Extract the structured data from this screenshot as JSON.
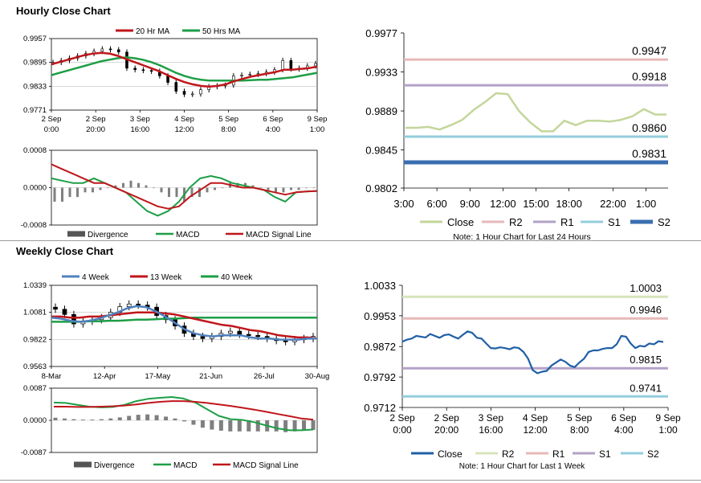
{
  "hourly": {
    "title": "Hourly Close Chart",
    "price": {
      "legend": [
        "20 Hr MA",
        "50 Hrs MA"
      ],
      "yticks": [
        "0.9957",
        "0.9895",
        "0.9833",
        "0.9771"
      ],
      "xticks": [
        [
          "2 Sep",
          "0:00"
        ],
        [
          "2 Sep",
          "20:00"
        ],
        [
          "3 Sep",
          "16:00"
        ],
        [
          "4 Sep",
          "12:00"
        ],
        [
          "5 Sep",
          "8:00"
        ],
        [
          "6 Sep",
          "4:00"
        ],
        [
          "9 Sep",
          "1:00"
        ]
      ]
    },
    "macd": {
      "yticks": [
        "0.0008",
        "0.0000",
        "-0.0008"
      ],
      "legend": [
        "Divergence",
        "MACD",
        "MACD Signal Line"
      ]
    }
  },
  "hourly_right": {
    "yticks": [
      "0.9977",
      "0.9933",
      "0.9889",
      "0.9845",
      "0.9802"
    ],
    "xticks": [
      "3:00",
      "6:00",
      "9:00",
      "12:00",
      "15:00",
      "18:00",
      "22:00",
      "1:00"
    ],
    "level_labels": [
      "0.9947",
      "0.9918",
      "0.9860",
      "0.9831"
    ],
    "legend": [
      "Close",
      "R2",
      "R1",
      "S1",
      "S2"
    ],
    "note": "Note: 1 Hour Chart for Last 24 Hours"
  },
  "weekly": {
    "title": "Weekly Close Chart",
    "price": {
      "legend": [
        "4 Week",
        "13 Week",
        "40 Week"
      ],
      "yticks": [
        "1.0339",
        "1.0081",
        "0.9822",
        "0.9563"
      ],
      "xticks": [
        "8-Mar",
        "12-Apr",
        "17-May",
        "21-Jun",
        "26-Jul",
        "30-Aug"
      ]
    },
    "macd": {
      "yticks": [
        "0.0087",
        "0.0000",
        "-0.0087"
      ],
      "legend": [
        "Divergence",
        "MACD",
        "MACD Signal Line"
      ]
    }
  },
  "weekly_right": {
    "yticks": [
      "1.0033",
      "0.9953",
      "0.9872",
      "0.9792",
      "0.9712"
    ],
    "xticks": [
      [
        "2 Sep",
        "0:00"
      ],
      [
        "2 Sep",
        "20:00"
      ],
      [
        "3 Sep",
        "16:00"
      ],
      [
        "4 Sep",
        "12:00"
      ],
      [
        "5 Sep",
        "8:00"
      ],
      [
        "6 Sep",
        "4:00"
      ],
      [
        "9 Sep",
        "1:00"
      ]
    ],
    "level_labels": [
      "1.0003",
      "0.9946",
      "0.9815",
      "0.9741"
    ],
    "legend": [
      "Close",
      "R2",
      "R1",
      "S1",
      "S2"
    ],
    "note": "Note: 1 Hour Chart for Last 1 Week"
  },
  "colors": {
    "ma_red": "#c0161b",
    "ma_green": "#1e9e46",
    "ma_blue": "#4f81bd",
    "candle": "#000000",
    "divergence": "#7f7f7f",
    "close_light": "#c3d69b",
    "close_blue": "#1f5fa6",
    "r2": "#e6b9b8",
    "r1": "#b3a2c7",
    "s1": "#93cddd",
    "s2": "#3a6eb0",
    "r2_weekly": "#d7e4bc",
    "r1_weekly": "#e6b9b8",
    "s1_weekly": "#b3a2c7",
    "s2_weekly": "#93cddd",
    "grid": "#bfbfbf"
  },
  "chart_data": [
    {
      "id": "hourly-price",
      "type": "line",
      "title": "",
      "ylim": [
        0.9771,
        0.9957
      ],
      "x_labels": [
        "2 Sep 0:00",
        "2 Sep 20:00",
        "3 Sep 16:00",
        "4 Sep 12:00",
        "5 Sep 8:00",
        "6 Sep 4:00",
        "9 Sep 1:00"
      ],
      "series": [
        {
          "name": "Close",
          "values": [
            0.9895,
            0.99,
            0.9906,
            0.9912,
            0.9918,
            0.9924,
            0.993,
            0.9928,
            0.9922,
            0.988,
            0.9876,
            0.9874,
            0.9872,
            0.986,
            0.9843,
            0.982,
            0.9812,
            0.9813,
            0.9824,
            0.9832,
            0.9834,
            0.9836,
            0.986,
            0.9862,
            0.9864,
            0.9866,
            0.987,
            0.9876,
            0.99,
            0.9878,
            0.988,
            0.9886,
            0.9892
          ]
        },
        {
          "name": "20 Hr MA",
          "values": [
            0.989,
            0.9896,
            0.9902,
            0.9908,
            0.9914,
            0.9918,
            0.992,
            0.9918,
            0.9912,
            0.9904,
            0.9896,
            0.9888,
            0.988,
            0.9872,
            0.9862,
            0.9852,
            0.9844,
            0.9838,
            0.9834,
            0.9832,
            0.9834,
            0.9838,
            0.9846,
            0.9852,
            0.9858,
            0.9862,
            0.9866,
            0.987,
            0.9876,
            0.9876,
            0.9878,
            0.988,
            0.9884
          ]
        },
        {
          "name": "50 Hrs MA",
          "values": [
            0.9862,
            0.9868,
            0.9874,
            0.988,
            0.9886,
            0.9892,
            0.9898,
            0.9902,
            0.9906,
            0.9908,
            0.9906,
            0.9902,
            0.9896,
            0.9888,
            0.9878,
            0.9868,
            0.986,
            0.9854,
            0.985,
            0.9848,
            0.9848,
            0.9848,
            0.9848,
            0.9848,
            0.9849,
            0.985,
            0.985,
            0.9852,
            0.9854,
            0.9856,
            0.986,
            0.9864,
            0.9868
          ]
        }
      ]
    },
    {
      "id": "hourly-macd",
      "type": "line",
      "title": "",
      "ylim": [
        -0.0008,
        0.0008
      ],
      "series": [
        {
          "name": "Divergence",
          "type": "bar",
          "values": [
            -0.0003,
            -0.0003,
            -0.0002,
            -0.0002,
            -0.0001,
            -0.0001,
            -5e-05,
            0.0,
            5e-05,
            0.0001,
            0.00015,
            0.0001,
            5e-05,
            0.0,
            -0.0001,
            -0.0002,
            -0.0002,
            -0.0003,
            -0.0002,
            -0.0002,
            -0.0001,
            -5e-05,
            0.0,
            0.0001,
            0.0001,
            0.0001,
            5e-05,
            0.0,
            -5e-05,
            -0.0001,
            -0.0001,
            -5e-05,
            -5e-05,
            0.0,
            0.0
          ]
        },
        {
          "name": "MACD",
          "values": [
            0.0002,
            0.00015,
            0.0001,
            0.0001,
            0.0002,
            0.0001,
            0.0,
            -0.0001,
            -0.0003,
            -0.0005,
            -0.0006,
            -0.0005,
            -0.0003,
            0.0,
            0.0002,
            0.00025,
            0.0002,
            0.0001,
            5e-05,
            0.0,
            -5e-05,
            -0.0002,
            -0.0003,
            -0.0001,
            -8e-05,
            -7e-05
          ]
        },
        {
          "name": "MACD Signal Line",
          "values": [
            0.0005,
            0.0004,
            0.0003,
            0.0002,
            0.0001,
            0.0001,
            0.0,
            -0.0001,
            -0.0002,
            -0.0003,
            -0.0004,
            -0.00045,
            -0.0004,
            -0.0002,
            -5e-05,
            0.0001,
            0.0001,
            5e-05,
            0.0,
            0.0,
            -5e-05,
            -0.0001,
            -0.00015,
            -0.0001,
            -8e-05,
            -7e-05
          ]
        }
      ],
      "legend": [
        "Divergence",
        "MACD",
        "MACD Signal Line"
      ]
    },
    {
      "id": "hourly-24h",
      "type": "line",
      "title": "",
      "ylim": [
        0.9802,
        0.9977
      ],
      "x": [
        "3:00",
        "4:00",
        "5:00",
        "6:00",
        "7:00",
        "8:00",
        "9:00",
        "10:00",
        "11:00",
        "12:00",
        "13:00",
        "14:00",
        "15:00",
        "16:00",
        "17:00",
        "18:00",
        "19:00",
        "20:00",
        "21:00",
        "22:00",
        "23:00",
        "0:00",
        "1:00",
        "2:00"
      ],
      "series": [
        {
          "name": "Close",
          "values": [
            0.987,
            0.987,
            0.9871,
            0.9868,
            0.9873,
            0.9879,
            0.989,
            0.9899,
            0.9909,
            0.9908,
            0.9889,
            0.9876,
            0.9866,
            0.9866,
            0.9878,
            0.9873,
            0.9878,
            0.9878,
            0.9877,
            0.9879,
            0.9883,
            0.9891,
            0.9885,
            0.9885
          ]
        }
      ],
      "levels": [
        {
          "name": "R2",
          "value": 0.9947
        },
        {
          "name": "R1",
          "value": 0.9918
        },
        {
          "name": "S1",
          "value": 0.986
        },
        {
          "name": "S2",
          "value": 0.9831
        }
      ],
      "legend": [
        "Close",
        "R2",
        "R1",
        "S1",
        "S2"
      ]
    },
    {
      "id": "weekly-price",
      "type": "line",
      "title": "",
      "ylim": [
        0.9563,
        1.0339
      ],
      "x_labels": [
        "8-Mar",
        "12-Apr",
        "17-May",
        "21-Jun",
        "26-Jul",
        "30-Aug"
      ],
      "series": [
        {
          "name": "Close",
          "values": [
            1.011,
            1.006,
            0.997,
            0.9995,
            1.001,
            1.003,
            1.008,
            1.0135,
            1.016,
            1.015,
            1.013,
            1.005,
            1.001,
            0.995,
            0.988,
            0.985,
            0.983,
            0.985,
            0.988,
            0.99,
            0.987,
            0.986,
            0.985,
            0.983,
            0.981,
            0.98,
            0.982,
            0.983,
            0.985
          ]
        },
        {
          "name": "4 Week",
          "values": [
            1.003,
            1.002,
            1.0,
            0.999,
            1.0,
            1.002,
            1.005,
            1.008,
            1.012,
            1.014,
            1.013,
            1.009,
            1.004,
            0.998,
            0.992,
            0.988,
            0.986,
            0.985,
            0.986,
            0.986,
            0.986,
            0.984,
            0.983,
            0.983,
            0.982,
            0.982,
            0.982,
            0.983,
            0.983
          ]
        },
        {
          "name": "13 Week",
          "values": [
            1.004,
            1.004,
            1.003,
            1.003,
            1.004,
            1.004,
            1.005,
            1.006,
            1.007,
            1.008,
            1.008,
            1.008,
            1.007,
            1.006,
            1.004,
            1.002,
            1.0,
            0.998,
            0.996,
            0.995,
            0.993,
            0.991,
            0.99,
            0.988,
            0.986,
            0.985,
            0.984,
            0.984,
            0.983
          ]
        },
        {
          "name": "40 Week",
          "values": [
            0.999,
            0.999,
            0.999,
            0.999,
            0.9995,
            0.9995,
            1.0,
            1.0,
            1.0005,
            1.001,
            1.001,
            1.0015,
            1.002,
            1.002,
            1.0025,
            1.003,
            1.003,
            1.003,
            1.003,
            1.003,
            1.003,
            1.003,
            1.003,
            1.003,
            1.003,
            1.003,
            1.003,
            1.003,
            1.003
          ]
        }
      ]
    },
    {
      "id": "weekly-macd",
      "type": "line",
      "title": "",
      "ylim": [
        -0.0087,
        0.0087
      ],
      "series": [
        {
          "name": "Divergence",
          "type": "bar",
          "values": [
            0.0007,
            0.0005,
            0.0003,
            0.0002,
            0.0002,
            0.0003,
            0.0005,
            0.0008,
            0.0012,
            0.0015,
            0.0016,
            0.0014,
            0.001,
            0.0005,
            -0.0003,
            -0.0012,
            -0.002,
            -0.0025,
            -0.0028,
            -0.003,
            -0.003,
            -0.003,
            -0.003,
            -0.003,
            -0.003,
            -0.0032,
            -0.003,
            -0.0028,
            -0.0026
          ]
        },
        {
          "name": "MACD",
          "values": [
            0.0048,
            0.0047,
            0.0042,
            0.0037,
            0.0035,
            0.0036,
            0.0042,
            0.0052,
            0.0058,
            0.0061,
            0.0063,
            0.0059,
            0.0048,
            0.003,
            0.0012,
            0.0003,
            0.0001,
            -0.0005,
            -0.0014,
            -0.0022,
            -0.0027,
            -0.0027,
            -0.0025
          ]
        },
        {
          "name": "MACD Signal Line",
          "values": [
            0.0037,
            0.0037,
            0.0036,
            0.0036,
            0.0037,
            0.0038,
            0.004,
            0.0043,
            0.0047,
            0.005,
            0.0052,
            0.0052,
            0.005,
            0.0047,
            0.0043,
            0.0039,
            0.0034,
            0.0029,
            0.0023,
            0.0017,
            0.0011,
            0.0005,
            0.0002
          ]
        }
      ],
      "legend": [
        "Divergence",
        "MACD",
        "MACD Signal Line"
      ]
    },
    {
      "id": "weekly-1w",
      "type": "line",
      "title": "",
      "ylim": [
        0.9712,
        1.0033
      ],
      "x_labels": [
        "2 Sep 0:00",
        "2 Sep 20:00",
        "3 Sep 16:00",
        "4 Sep 12:00",
        "5 Sep 8:00",
        "6 Sep 4:00",
        "9 Sep 1:00"
      ],
      "series": [
        {
          "name": "Close",
          "values": [
            0.9885,
            0.989,
            0.9893,
            0.99,
            0.9898,
            0.9896,
            0.9905,
            0.99,
            0.9895,
            0.9902,
            0.9904,
            0.9898,
            0.9893,
            0.9903,
            0.9912,
            0.9908,
            0.9895,
            0.9893,
            0.988,
            0.9868,
            0.9867,
            0.987,
            0.9868,
            0.9865,
            0.987,
            0.9868,
            0.9858,
            0.984,
            0.981,
            0.9802,
            0.9806,
            0.9808,
            0.9822,
            0.983,
            0.9838,
            0.9832,
            0.9822,
            0.9818,
            0.983,
            0.984,
            0.9858,
            0.9862,
            0.9862,
            0.9866,
            0.9868,
            0.9868,
            0.9878,
            0.99,
            0.9898,
            0.988,
            0.9868,
            0.9874,
            0.9872,
            0.988,
            0.9878,
            0.9886,
            0.9884
          ]
        }
      ],
      "levels": [
        {
          "name": "R2",
          "value": 1.0003
        },
        {
          "name": "R1",
          "value": 0.9946
        },
        {
          "name": "S1",
          "value": 0.9815
        },
        {
          "name": "S2",
          "value": 0.9741
        }
      ],
      "legend": [
        "Close",
        "R2",
        "R1",
        "S1",
        "S2"
      ]
    }
  ]
}
